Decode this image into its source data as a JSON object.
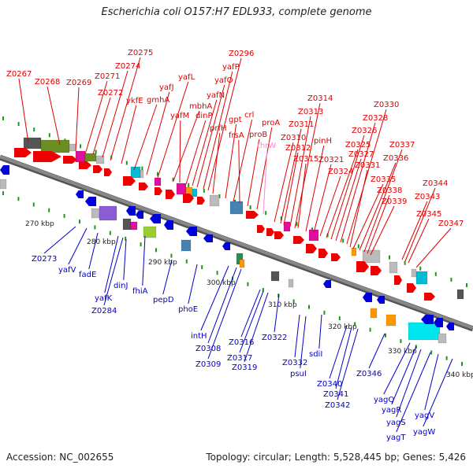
{
  "title": "Escherichia coli O157:H7 EDL933, complete genome",
  "accession": "Accession: NC_002655",
  "topology": "Topology: circular; Length: 5,528,445 bp; Genes: 5,426",
  "colors": {
    "forward_label": "#e00000",
    "reverse_label": "#0000cc",
    "pink_label": "#ff88cc",
    "backbone": "#888888",
    "tick": "#1a9a1a"
  },
  "scale_labels": [
    "270 kbp",
    "280 kbp",
    "290 kbp",
    "300 kbp",
    "310 kbp",
    "320 kbp",
    "330 kbp",
    "340 kbp"
  ],
  "forward_genes": [
    "Z0267",
    "Z0268",
    "Z0269",
    "Z0271",
    "Z0272",
    "Z0274",
    "Z0275",
    "ykfE",
    "gmhA",
    "yafJ",
    "yafL",
    "mbhA",
    "yafM",
    "dinP",
    "yafN",
    "yafO",
    "yafP",
    "Z0296",
    "prfH",
    "gpt",
    "crl",
    "frsA",
    "proB",
    "proA",
    "thrW",
    "Z0310",
    "Z0311",
    "Z0312",
    "Z0313",
    "Z0314",
    "Z0315",
    "pinH",
    "Z0321",
    "Z0324",
    "Z0325",
    "Z0326",
    "Z0327",
    "Z0328",
    "Z0330",
    "Z0331",
    "Z0335",
    "Z0336",
    "Z0337",
    "Z0338",
    "Z0339",
    "Z0343",
    "Z0344",
    "Z0345",
    "Z0347"
  ],
  "reverse_genes": [
    "Z0273",
    "yafV",
    "fadE",
    "yafK",
    "Z0284",
    "dinJ",
    "fhiA",
    "pepD",
    "phoE",
    "intH",
    "Z0308",
    "Z0309",
    "Z0316",
    "Z0317",
    "Z0319",
    "Z0322",
    "Z0332",
    "psuI",
    "sdiI",
    "Z0340",
    "Z0341",
    "Z0342",
    "Z0346",
    "yagQ",
    "yagR",
    "yagS",
    "yagT",
    "yagV",
    "yagW"
  ]
}
